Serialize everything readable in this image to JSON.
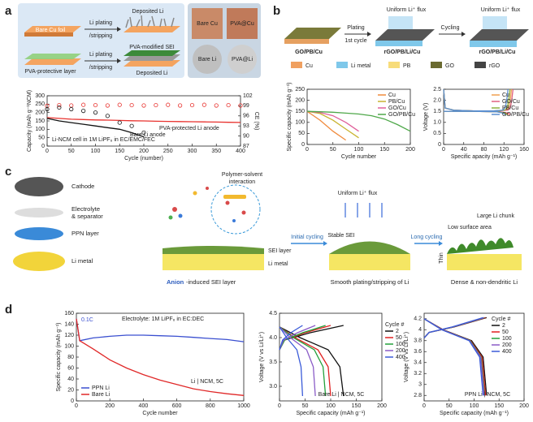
{
  "panel_labels": [
    "a",
    "b",
    "c",
    "d"
  ],
  "panel_a": {
    "texts": [
      "Deposited Li",
      "Bare Cu foil",
      "Li plating",
      "/stripping",
      "PVA-protective layer",
      "Li plating",
      "/stripping",
      "PVA-modified SEI",
      "Deposited Li",
      "Bare Cu",
      "PVA@Cu",
      "Bare Li",
      "PVA@Li"
    ]
  },
  "panel_b": {
    "texts": [
      "Plating",
      "1st cycle",
      "Cycling",
      "Uniform Li⁺ flux",
      "Uniform Li⁺ flux",
      "GO/PB/Cu",
      "rGO/PB/Li/Cu",
      "rGO/PB/Li/Cu",
      "Cu",
      "Li metal",
      "PB",
      "GO",
      "rGO"
    ]
  },
  "panel_c": {
    "texts": [
      "Cathode",
      "Electrolyte",
      "& separator",
      "PPN layer",
      "Li metal",
      "Polymer-solvent",
      "interaction",
      "Uniform Li⁺ flux",
      "Initial cycling",
      "Long cycling",
      "Stable SEI",
      "Large Li chunk",
      "Low surface area",
      "SEI layer",
      "Li metal",
      "Thin",
      "Anion",
      "-induced SEI layer",
      "Smooth plating/stripping of Li",
      "Dense & non-dendritic Li"
    ]
  },
  "chart_data": [
    {
      "type": "line",
      "xlabel": "Cycle (number)",
      "ylabel": "Capacity (mAh g⁻¹NCM)",
      "y2label": "CE (%)",
      "x": [
        0,
        25,
        50,
        75,
        100,
        125,
        150,
        175,
        200,
        225,
        250,
        275,
        300,
        325,
        350,
        375,
        400
      ],
      "xlim": [
        0,
        400
      ],
      "xticks": [
        0,
        50,
        100,
        150,
        200,
        250,
        300,
        350,
        400
      ],
      "ylim": [
        0,
        300
      ],
      "yticks": [
        0,
        50,
        100,
        150,
        200,
        250,
        300
      ],
      "y2lim": [
        87,
        102
      ],
      "y2ticks": [
        87,
        90,
        93,
        96,
        99,
        102
      ],
      "annotations": [
        "Li-NCM cell in 1M LiPF₆ in EC/EMC/FEC",
        "PVA-protected Li anode",
        "Bare Li anode"
      ],
      "series": [
        {
          "color": "#e8322e",
          "values": [
            170,
            165,
            160,
            158,
            156,
            155,
            153,
            151,
            150,
            148,
            147,
            146,
            145,
            144,
            143,
            142,
            141
          ]
        },
        {
          "color": "#111111",
          "values": [
            165,
            150,
            140,
            130,
            120,
            110,
            100,
            80,
            55,
            null,
            null,
            null,
            null,
            null,
            null,
            null,
            null
          ]
        },
        {
          "color": "#e8322e",
          "marker": "open-circle",
          "axis": "y2",
          "values": [
            99,
            99.2,
            99.1,
            99.3,
            99.2,
            99.1,
            99.3,
            99.2,
            99.1,
            99.2,
            99.3,
            99.1,
            99.2,
            99.3,
            99.1,
            99.2,
            99.1
          ]
        },
        {
          "color": "#111111",
          "marker": "open-circle",
          "axis": "y2",
          "values": [
            98,
            98.5,
            98,
            97.5,
            97,
            96,
            94,
            93,
            91,
            null,
            null,
            null,
            null,
            null,
            null,
            null,
            null
          ]
        }
      ]
    },
    {
      "type": "line",
      "xlabel": "Cycle number",
      "ylabel": "Specific capacity (mAh g⁻¹)",
      "legend": "upper right",
      "x": [
        0,
        25,
        50,
        75,
        100,
        125,
        150,
        175,
        200
      ],
      "xlim": [
        0,
        200
      ],
      "xticks": [
        0,
        50,
        100,
        150,
        200
      ],
      "ylim": [
        0,
        250
      ],
      "yticks": [
        0,
        50,
        100,
        150,
        200,
        250
      ],
      "series": [
        {
          "name": "Cu",
          "color": "#f08a3c",
          "values": [
            150,
            110,
            60,
            20,
            null,
            null,
            null,
            null,
            null
          ]
        },
        {
          "name": "PB/Cu",
          "color": "#c9b330",
          "values": [
            150,
            140,
            110,
            70,
            30,
            null,
            null,
            null,
            null
          ]
        },
        {
          "name": "GO/Cu",
          "color": "#e0609a",
          "values": [
            150,
            145,
            130,
            100,
            60,
            null,
            null,
            null,
            null
          ]
        },
        {
          "name": "GO/PB/Cu",
          "color": "#4fa84a",
          "values": [
            150,
            148,
            146,
            142,
            138,
            130,
            115,
            90,
            60
          ]
        }
      ]
    },
    {
      "type": "line",
      "xlabel": "Specific apacity (mAh g⁻¹)",
      "ylabel": "Voltage (V)",
      "legend": "upper right",
      "xlim": [
        0,
        160
      ],
      "xticks": [
        0,
        40,
        80,
        120,
        160
      ],
      "ylim": [
        0,
        2.5
      ],
      "yticks": [
        0,
        0.5,
        {
          "value": 1,
          "label": "1.0"
        },
        1.5,
        {
          "value": 2,
          "label": "2.0"
        },
        2.5
      ],
      "series": [
        {
          "name": "Cu",
          "color": "#f0a050",
          "x": [
            0,
            3,
            20,
            60,
            100,
            125,
            130,
            133,
            135,
            null,
            0,
            60,
            110,
            125,
            130
          ],
          "values": [
            2.5,
            1.65,
            1.55,
            1.52,
            1.52,
            1.55,
            1.7,
            2.1,
            2.5,
            null,
            1.5,
            1.5,
            1.48,
            1.42,
            1.35
          ]
        },
        {
          "name": "GO/Cu",
          "color": "#e06080",
          "x": [
            0,
            3,
            20,
            60,
            100,
            128,
            133,
            136,
            138,
            null,
            0,
            60,
            112,
            128,
            133
          ],
          "values": [
            2.5,
            1.65,
            1.55,
            1.52,
            1.52,
            1.55,
            1.7,
            2.1,
            2.5,
            null,
            1.5,
            1.5,
            1.48,
            1.42,
            1.35
          ]
        },
        {
          "name": "PB/Cu",
          "color": "#8cb040",
          "x": [
            0,
            3,
            20,
            60,
            100,
            122,
            127,
            130,
            132,
            null,
            0,
            60,
            108,
            122,
            127
          ],
          "values": [
            2.5,
            1.65,
            1.55,
            1.52,
            1.52,
            1.55,
            1.7,
            2.1,
            2.5,
            null,
            1.5,
            1.5,
            1.48,
            1.42,
            1.35
          ]
        },
        {
          "name": "GO/PB/Cu",
          "color": "#5b8fd0",
          "x": [
            0,
            3,
            20,
            60,
            100,
            118,
            123,
            126,
            128,
            null,
            0,
            60,
            105,
            118,
            123
          ],
          "values": [
            2.5,
            1.65,
            1.55,
            1.52,
            1.52,
            1.55,
            1.7,
            2.1,
            2.5,
            null,
            1.5,
            1.5,
            1.48,
            1.42,
            1.35
          ]
        }
      ]
    },
    {
      "type": "line",
      "xlabel": "Cycle number",
      "ylabel": "Specific capacity (mAh g⁻¹)",
      "legend": "lower left",
      "x": [
        0,
        20,
        100,
        200,
        300,
        400,
        500,
        600,
        700,
        800,
        900,
        1000
      ],
      "xlim": [
        0,
        1000
      ],
      "xticks": [
        0,
        200,
        400,
        600,
        800,
        1000
      ],
      "ylim": [
        0,
        160
      ],
      "yticks": [
        0,
        20,
        40,
        60,
        80,
        100,
        120,
        140,
        160
      ],
      "annotations": [
        "0.1C",
        "Electrolyte: 1M LiPF₆ in EC:DEC",
        "Li | NCM, 5C"
      ],
      "series": [
        {
          "name": "PPN Li",
          "color": "#3a4fd0",
          "values": [
            150,
            110,
            115,
            118,
            120,
            120,
            119,
            118,
            116,
            114,
            112,
            108
          ]
        },
        {
          "name": "Bare Li",
          "color": "#e02828",
          "values": [
            150,
            110,
            95,
            75,
            60,
            48,
            38,
            30,
            22,
            17,
            13,
            10
          ]
        }
      ]
    },
    {
      "type": "line",
      "xlabel": "Specific capacity (mAh g⁻¹)",
      "ylabel": "Voltage (V vs Li/Li⁺)",
      "legend": "outside right",
      "legend_title": "Cycle #",
      "xlim": [
        0,
        200
      ],
      "xticks": [
        0,
        50,
        100,
        150,
        200
      ],
      "ylim": [
        2.7,
        4.5
      ],
      "yticks": [
        {
          "value": 3,
          "label": "3.0"
        },
        3.5,
        {
          "value": 4,
          "label": "4.0"
        },
        4.5
      ],
      "annotations": [
        "Bare Li | NCM, 5C"
      ],
      "series": [
        {
          "name": "2",
          "color": "#111111",
          "x": [
            0,
            10,
            60,
            125,
            null,
            0,
            40,
            95,
            118,
            125
          ],
          "values": [
            3.75,
            3.95,
            4.1,
            4.25,
            null,
            4.22,
            4.0,
            3.75,
            3.4,
            2.8
          ]
        },
        {
          "name": "50",
          "color": "#e02020",
          "x": [
            0,
            10,
            50,
            100,
            null,
            0,
            30,
            75,
            95,
            100
          ],
          "values": [
            3.75,
            3.95,
            4.1,
            4.25,
            null,
            4.22,
            4.0,
            3.75,
            3.4,
            2.8
          ]
        },
        {
          "name": "100",
          "color": "#22a03a",
          "x": [
            0,
            10,
            45,
            90,
            null,
            0,
            27,
            68,
            85,
            90
          ],
          "values": [
            3.75,
            3.95,
            4.1,
            4.25,
            null,
            4.22,
            4.0,
            3.75,
            3.4,
            2.8
          ]
        },
        {
          "name": "200",
          "color": "#8a5cc7",
          "x": [
            0,
            8,
            35,
            70,
            null,
            0,
            21,
            53,
            66,
            70
          ],
          "values": [
            3.75,
            3.95,
            4.1,
            4.25,
            null,
            4.22,
            4.0,
            3.75,
            3.4,
            2.8
          ]
        },
        {
          "name": "400",
          "color": "#3a5bd9",
          "x": [
            0,
            6,
            22,
            45,
            null,
            0,
            14,
            34,
            42,
            45
          ],
          "values": [
            3.75,
            3.95,
            4.1,
            4.25,
            null,
            4.22,
            4.0,
            3.75,
            3.4,
            2.8
          ]
        }
      ]
    },
    {
      "type": "line",
      "xlabel": "Specific capacity (mAh g⁻¹)",
      "ylabel": "Voltage (V vs Li/Li⁺)",
      "legend": "upper right",
      "legend_title": "Cycle #",
      "xlim": [
        0,
        200
      ],
      "xticks": [
        0,
        50,
        100,
        150,
        200
      ],
      "ylim": [
        2.7,
        4.3
      ],
      "yticks": [
        2.8,
        3,
        3.2,
        3.4,
        3.6,
        3.8,
        4,
        4.2
      ],
      "annotations": [
        "PPN Li | NCM, 5C"
      ],
      "series": [
        {
          "name": "2",
          "color": "#111111",
          "x": [
            0,
            10,
            60,
            125,
            null,
            0,
            38,
            95,
            118,
            125
          ],
          "values": [
            3.85,
            3.95,
            4.05,
            4.22,
            null,
            4.2,
            4.0,
            3.8,
            3.5,
            2.8
          ]
        },
        {
          "name": "50",
          "color": "#e02020",
          "x": [
            0,
            10,
            59,
            123,
            null,
            0,
            37,
            93,
            116,
            123
          ],
          "values": [
            3.85,
            3.95,
            4.05,
            4.22,
            null,
            4.2,
            4.0,
            3.8,
            3.5,
            2.8
          ]
        },
        {
          "name": "100",
          "color": "#22a03a",
          "x": [
            0,
            10,
            58,
            121,
            null,
            0,
            36,
            92,
            114,
            121
          ],
          "values": [
            3.85,
            3.95,
            4.05,
            4.22,
            null,
            4.2,
            4.0,
            3.8,
            3.5,
            2.8
          ]
        },
        {
          "name": "200",
          "color": "#8a5cc7",
          "x": [
            0,
            10,
            57,
            120,
            null,
            0,
            36,
            91,
            113,
            120
          ],
          "values": [
            3.85,
            3.95,
            4.05,
            4.22,
            null,
            4.2,
            4.0,
            3.8,
            3.5,
            2.8
          ]
        },
        {
          "name": "400",
          "color": "#3a5bd9",
          "x": [
            0,
            10,
            56,
            118,
            null,
            0,
            35,
            90,
            111,
            118
          ],
          "values": [
            3.85,
            3.95,
            4.05,
            4.22,
            null,
            4.2,
            4.0,
            3.8,
            3.5,
            2.8
          ]
        }
      ]
    }
  ]
}
